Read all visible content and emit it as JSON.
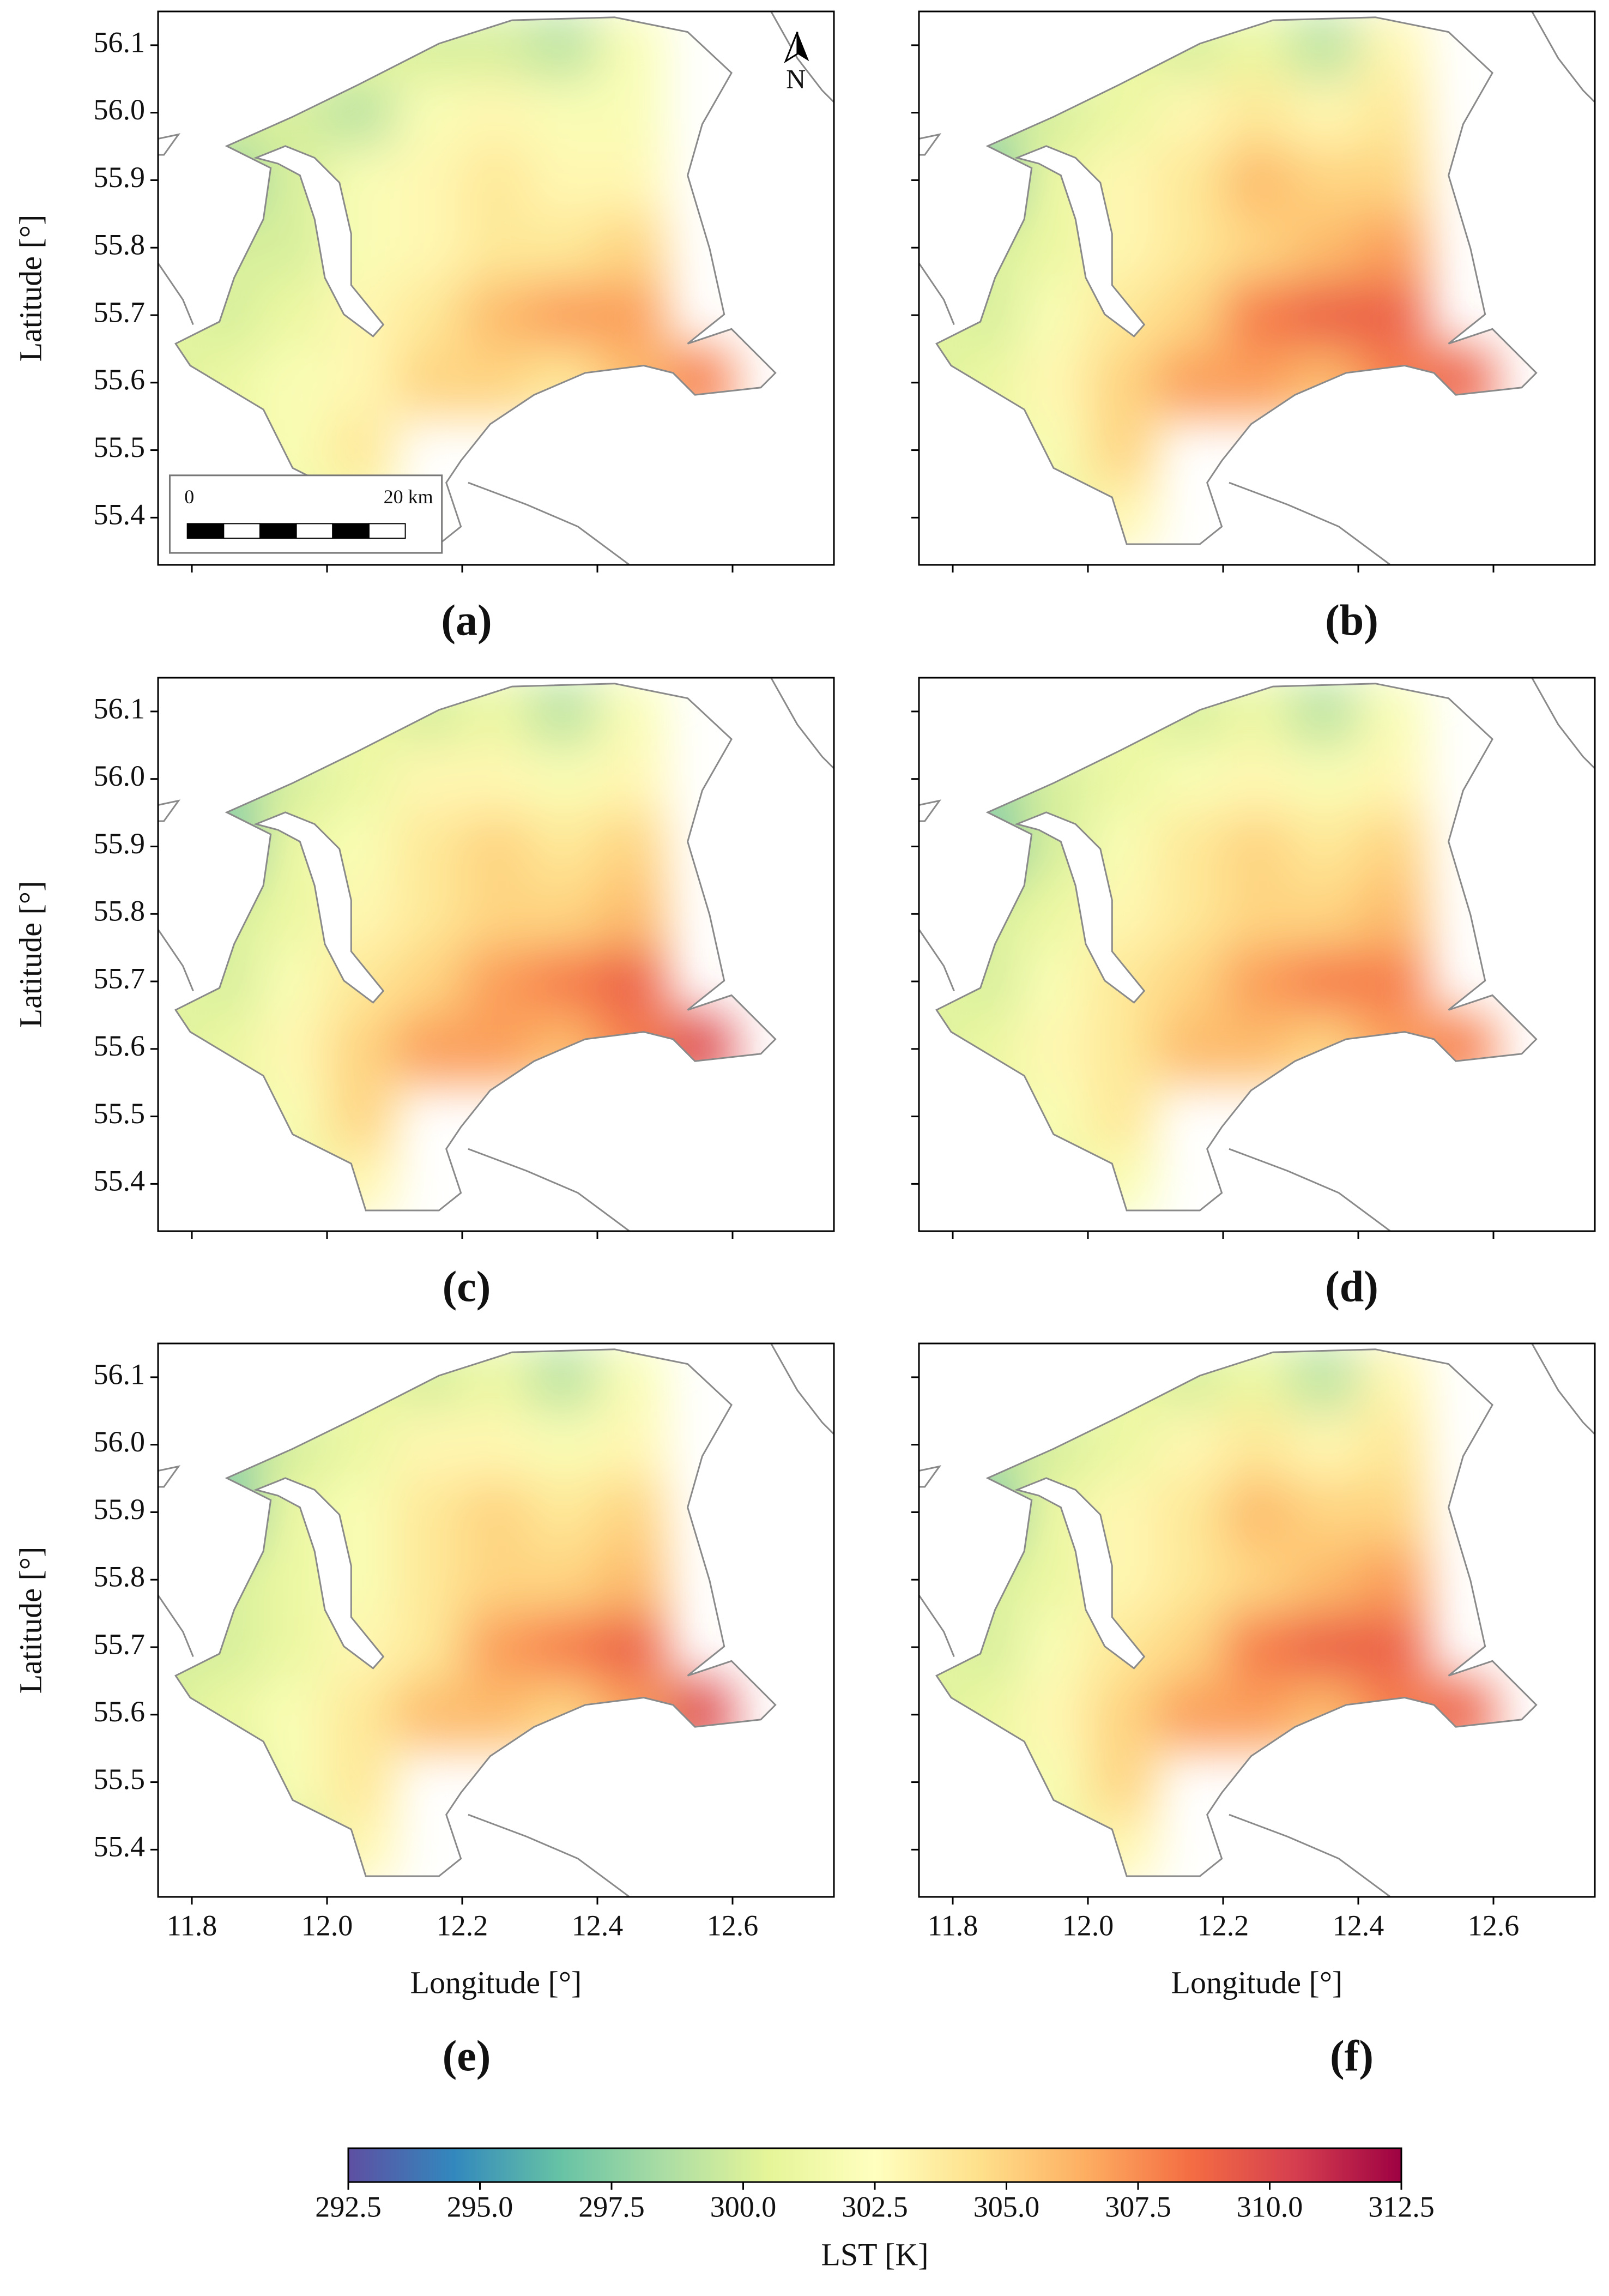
{
  "chart_data": {
    "type": "heatmap-map",
    "panels": [
      {
        "label": "(a)",
        "values": [
          [
            null,
            null,
            null,
            301,
            300,
            300,
            299,
            302,
            null
          ],
          [
            null,
            300,
            300,
            299,
            302,
            303,
            302,
            302,
            null
          ],
          [
            null,
            298,
            300,
            302,
            303,
            304,
            303,
            303,
            null
          ],
          [
            null,
            300,
            300,
            302,
            303,
            304,
            304,
            305,
            null
          ],
          [
            301,
            300,
            301,
            303,
            304,
            306,
            307,
            307,
            null
          ],
          [
            300,
            301,
            302,
            303,
            305,
            305,
            304,
            306,
            308
          ],
          [
            null,
            301,
            302,
            304,
            null,
            null,
            null,
            null,
            null
          ],
          [
            null,
            null,
            301,
            302,
            null,
            null,
            null,
            null,
            null
          ]
        ]
      },
      {
        "label": "(b)",
        "values": [
          [
            null,
            null,
            null,
            301,
            300,
            301,
            299,
            303,
            null
          ],
          [
            null,
            299,
            300,
            301,
            303,
            304,
            303,
            304,
            null
          ],
          [
            null,
            297,
            301,
            303,
            304,
            306,
            305,
            305,
            null
          ],
          [
            null,
            300,
            301,
            303,
            304,
            305,
            306,
            307,
            null
          ],
          [
            301,
            300,
            302,
            304,
            305,
            308,
            309,
            309,
            null
          ],
          [
            300,
            301,
            303,
            305,
            307,
            307,
            306,
            308,
            309
          ],
          [
            null,
            301,
            302,
            305,
            null,
            null,
            null,
            null,
            null
          ],
          [
            null,
            null,
            301,
            303,
            null,
            null,
            null,
            null,
            null
          ]
        ]
      },
      {
        "label": "(c)",
        "values": [
          [
            null,
            null,
            null,
            301,
            300,
            301,
            299,
            302,
            null
          ],
          [
            null,
            298,
            300,
            301,
            303,
            303,
            302,
            303,
            null
          ],
          [
            null,
            297,
            301,
            302,
            304,
            305,
            304,
            305,
            null
          ],
          [
            null,
            300,
            301,
            303,
            304,
            305,
            305,
            306,
            null
          ],
          [
            301,
            300,
            302,
            304,
            305,
            307,
            308,
            309,
            null
          ],
          [
            300,
            301,
            303,
            305,
            307,
            307,
            306,
            308,
            310
          ],
          [
            null,
            301,
            302,
            305,
            null,
            null,
            null,
            null,
            null
          ],
          [
            null,
            null,
            301,
            303,
            null,
            null,
            null,
            null,
            null
          ]
        ]
      },
      {
        "label": "(d)",
        "values": [
          [
            null,
            null,
            null,
            301,
            300,
            301,
            299,
            302,
            null
          ],
          [
            null,
            298,
            300,
            301,
            302,
            303,
            302,
            303,
            null
          ],
          [
            null,
            297,
            300,
            302,
            304,
            305,
            304,
            305,
            null
          ],
          [
            null,
            300,
            301,
            303,
            304,
            305,
            305,
            306,
            null
          ],
          [
            301,
            300,
            302,
            304,
            305,
            307,
            308,
            308,
            null
          ],
          [
            300,
            301,
            303,
            304,
            306,
            306,
            305,
            307,
            308
          ],
          [
            null,
            301,
            302,
            304,
            null,
            null,
            null,
            null,
            null
          ],
          [
            null,
            null,
            301,
            302,
            null,
            null,
            null,
            null,
            null
          ]
        ]
      },
      {
        "label": "(e)",
        "values": [
          [
            null,
            null,
            null,
            301,
            300,
            301,
            299,
            302,
            null
          ],
          [
            null,
            298,
            300,
            301,
            303,
            303,
            302,
            303,
            null
          ],
          [
            null,
            297,
            301,
            302,
            304,
            305,
            304,
            305,
            null
          ],
          [
            null,
            300,
            301,
            302,
            304,
            305,
            305,
            306,
            null
          ],
          [
            300,
            300,
            301,
            303,
            304,
            307,
            308,
            309,
            null
          ],
          [
            300,
            301,
            302,
            304,
            306,
            306,
            305,
            307,
            310
          ],
          [
            null,
            300,
            302,
            304,
            null,
            null,
            null,
            null,
            null
          ],
          [
            null,
            null,
            300,
            303,
            null,
            null,
            null,
            null,
            null
          ]
        ]
      },
      {
        "label": "(f)",
        "values": [
          [
            null,
            null,
            null,
            301,
            300,
            301,
            299,
            303,
            null
          ],
          [
            null,
            299,
            300,
            301,
            303,
            304,
            303,
            304,
            null
          ],
          [
            null,
            297,
            301,
            303,
            304,
            306,
            305,
            305,
            null
          ],
          [
            null,
            300,
            301,
            303,
            304,
            305,
            306,
            307,
            null
          ],
          [
            301,
            300,
            302,
            304,
            305,
            308,
            309,
            309,
            null
          ],
          [
            300,
            301,
            303,
            305,
            307,
            307,
            306,
            308,
            309
          ],
          [
            null,
            301,
            302,
            305,
            null,
            null,
            null,
            null,
            null
          ],
          [
            null,
            null,
            301,
            303,
            null,
            null,
            null,
            null,
            null
          ]
        ]
      }
    ],
    "grid_lon": [
      11.75,
      11.85,
      11.95,
      12.05,
      12.15,
      12.25,
      12.35,
      12.45,
      12.55
    ],
    "grid_lat": [
      56.1,
      56.0,
      55.9,
      55.8,
      55.7,
      55.6,
      55.5,
      55.4
    ],
    "xlim": [
      11.75,
      12.75
    ],
    "ylim": [
      55.33,
      56.15
    ],
    "xticks": [
      11.8,
      {
        "value": 12,
        "label": "12.0"
      },
      12.2,
      12.4,
      12.6
    ],
    "yticks": [
      55.4,
      55.5,
      55.6,
      55.7,
      55.8,
      55.9,
      {
        "value": 56,
        "label": "56.0"
      },
      56.1
    ],
    "xlabel": "Longitude [°]",
    "ylabel": "Latitude [°]",
    "colorbar": {
      "label": "LST [K]",
      "lim": [
        292.5,
        312.5
      ],
      "ticks": [
        292.5,
        {
          "value": 295,
          "label": "295.0"
        },
        297.5,
        {
          "value": 300,
          "label": "300.0"
        },
        302.5,
        {
          "value": 305,
          "label": "305.0"
        },
        307.5,
        {
          "value": 310,
          "label": "310.0"
        },
        312.5
      ],
      "colors": [
        "#5e4fa2",
        "#3288bd",
        "#66c2a5",
        "#abdda4",
        "#e6f598",
        "#ffffbf",
        "#fee08b",
        "#fdae61",
        "#f46d43",
        "#d53e4f",
        "#9e0142"
      ]
    },
    "scale_bar": {
      "labels": [
        "0",
        "20 km"
      ]
    },
    "north_label": "N"
  }
}
